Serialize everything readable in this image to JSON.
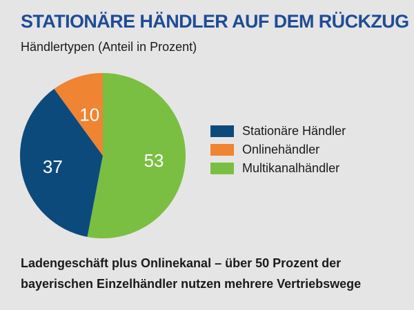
{
  "title": "STATIONÄRE HÄNDLER AUF DEM RÜCKZUG",
  "subtitle": "Händlertypen (Anteil in Prozent)",
  "footer": {
    "line1": "Ladengeschäft plus Onlinekanal – über 50 Prozent der",
    "line2": "bayerischen Einzelhändler nutzen mehrere Vertriebswege"
  },
  "colors": {
    "stationaer": "#0d4a7c",
    "online": "#ef8432",
    "multi": "#7bbf42",
    "title": "#1f4c96",
    "background": "#e5e5e5"
  },
  "chart_data": {
    "type": "pie",
    "title": "STATIONÄRE HÄNDLER AUF DEM RÜCKZUG",
    "subtitle": "Händlertypen (Anteil in Prozent)",
    "legend_position": "right",
    "slices": [
      {
        "name": "Stationäre Händler",
        "value": 37,
        "color": "#0d4a7c"
      },
      {
        "name": "Onlinehändler",
        "value": 10,
        "color": "#ef8432"
      },
      {
        "name": "Multikanalhändler",
        "value": 53,
        "color": "#7bbf42"
      }
    ]
  }
}
